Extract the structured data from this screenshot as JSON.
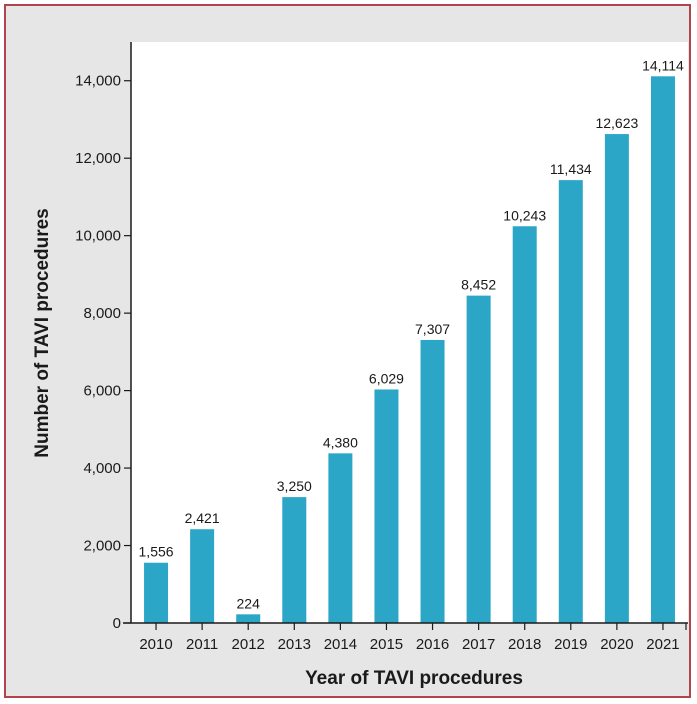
{
  "chart_data": {
    "type": "bar",
    "title": "",
    "xlabel": "Year of TAVI procedures",
    "ylabel": "Number of TAVI procedures",
    "categories": [
      "2010",
      "2011",
      "2012",
      "2013",
      "2014",
      "2015",
      "2016",
      "2017",
      "2018",
      "2019",
      "2020",
      "2021"
    ],
    "values": [
      1556,
      2421,
      224,
      3250,
      4380,
      6029,
      7307,
      8452,
      10243,
      11434,
      12623,
      14114
    ],
    "data_labels": [
      "1,556",
      "2,421",
      "224",
      "3,250",
      "4,380",
      "6,029",
      "7,307",
      "8,452",
      "10,243",
      "11,434",
      "12,623",
      "14,114"
    ],
    "yticks": [
      0,
      2000,
      4000,
      6000,
      8000,
      10000,
      12000,
      14000
    ],
    "ytick_labels": [
      "0",
      "2,000",
      "4,000",
      "6,000",
      "8,000",
      "10,000",
      "12,000",
      "14,000"
    ],
    "ylim": [
      0,
      15000
    ],
    "grid": false,
    "legend": "none",
    "bar_color": "#2ba6c6",
    "plot_background": "#ffffff",
    "frame_background": "#e6e6e6",
    "frame_border_color": "#b0434c"
  }
}
